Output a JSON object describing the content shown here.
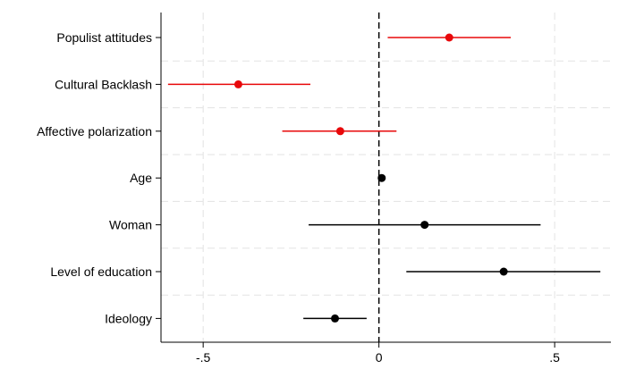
{
  "chart_data": {
    "type": "scatter",
    "subtype": "coefficient-plot",
    "title": "",
    "xlabel": "",
    "ylabel": "",
    "xlim": [
      -0.62,
      0.66
    ],
    "x_ticks": [
      -0.5,
      0,
      0.5
    ],
    "x_tick_labels": [
      "-.5",
      "0",
      ".5"
    ],
    "reference_line": 0,
    "grid": true,
    "legend": "none",
    "colors": {
      "highlight": "#e8080a",
      "default": "#000000",
      "grid": "#e3e3e3"
    },
    "categories": [
      {
        "label": "Populist attitudes",
        "estimate": 0.2,
        "ci_low": 0.025,
        "ci_high": 0.375,
        "color": "#e8080a"
      },
      {
        "label": "Cultural Backlash",
        "estimate": -0.4,
        "ci_low": -0.6,
        "ci_high": -0.195,
        "color": "#e8080a"
      },
      {
        "label": "Affective polarization",
        "estimate": -0.11,
        "ci_low": -0.275,
        "ci_high": 0.05,
        "color": "#e8080a"
      },
      {
        "label": "Age",
        "estimate": 0.008,
        "ci_low": 0.005,
        "ci_high": 0.011,
        "color": "#000000"
      },
      {
        "label": "Woman",
        "estimate": 0.13,
        "ci_low": -0.2,
        "ci_high": 0.46,
        "color": "#000000"
      },
      {
        "label": "Level of education",
        "estimate": 0.355,
        "ci_low": 0.078,
        "ci_high": 0.63,
        "color": "#000000"
      },
      {
        "label": "Ideology",
        "estimate": -0.125,
        "ci_low": -0.215,
        "ci_high": -0.035,
        "color": "#000000"
      }
    ]
  }
}
